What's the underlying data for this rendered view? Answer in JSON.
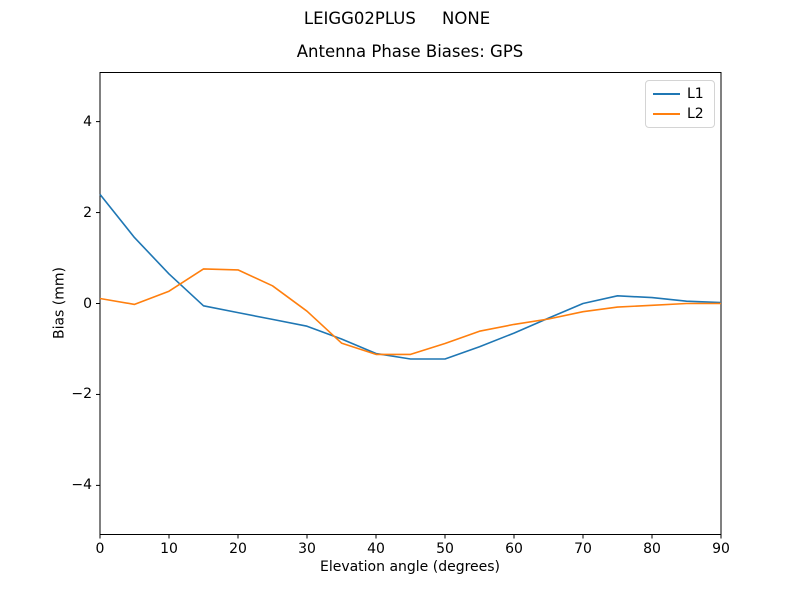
{
  "chart_data": {
    "type": "line",
    "suptitle": "LEIGG02PLUS     NONE",
    "title": "Antenna Phase Biases: GPS",
    "xlabel": "Elevation angle (degrees)",
    "ylabel": "Bias (mm)",
    "xlim": [
      0,
      90
    ],
    "ylim": [
      -5.08,
      5.08
    ],
    "grid": false,
    "legend_position": "upper right",
    "xticks": [
      {
        "v": 0,
        "label": "0"
      },
      {
        "v": 10,
        "label": "10"
      },
      {
        "v": 20,
        "label": "20"
      },
      {
        "v": 30,
        "label": "30"
      },
      {
        "v": 40,
        "label": "40"
      },
      {
        "v": 50,
        "label": "50"
      },
      {
        "v": 60,
        "label": "60"
      },
      {
        "v": 70,
        "label": "70"
      },
      {
        "v": 80,
        "label": "80"
      },
      {
        "v": 90,
        "label": "90"
      }
    ],
    "yticks": [
      {
        "v": -4,
        "label": "−4"
      },
      {
        "v": -2,
        "label": "−2"
      },
      {
        "v": 0,
        "label": "0"
      },
      {
        "v": 2,
        "label": "2"
      },
      {
        "v": 4,
        "label": "4"
      }
    ],
    "x": [
      0,
      5,
      10,
      15,
      20,
      25,
      30,
      35,
      40,
      45,
      50,
      55,
      60,
      65,
      70,
      75,
      80,
      85,
      90
    ],
    "series": [
      {
        "name": "L1",
        "color": "#1f77b4",
        "values": [
          2.4,
          1.45,
          0.65,
          -0.05,
          -0.2,
          -0.35,
          -0.5,
          -0.78,
          -1.1,
          -1.22,
          -1.22,
          -0.95,
          -0.65,
          -0.32,
          0.0,
          0.17,
          0.13,
          0.05,
          0.02
        ]
      },
      {
        "name": "L2",
        "color": "#ff7f0e",
        "values": [
          0.11,
          -0.02,
          0.27,
          0.76,
          0.74,
          0.39,
          -0.17,
          -0.87,
          -1.12,
          -1.12,
          -0.88,
          -0.61,
          -0.46,
          -0.34,
          -0.18,
          -0.08,
          -0.04,
          0.0,
          0.0
        ]
      }
    ],
    "axis_color": "#000000",
    "background": "#ffffff"
  }
}
